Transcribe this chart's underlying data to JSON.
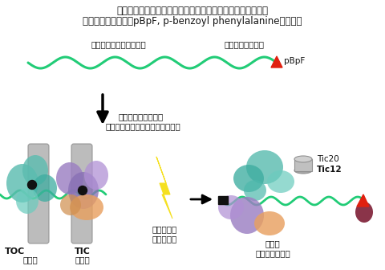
{
  "title_line1": "大腸菌内での葉緑体タンパク質前駆体トランジット配列への",
  "title_line2": "光架橋性アミノ酸（pBpF, p-benzoyl phenylalanine）の導入",
  "label_precursor": "葉緑体タンパク質前駆体",
  "label_transit": "トランジット配列",
  "label_pbpf": "pBpF",
  "label_step1": "単離葉緑体を用いた",
  "label_step2": "緑体タンパク質輸送中間体の形成",
  "label_toc": "TOC",
  "label_tic": "TIC",
  "label_outer": "外包膜",
  "label_inner": "内包膜",
  "label_uv": "紫外線照射",
  "label_uv2": "による架橋",
  "label_result1": "変性後",
  "label_result2": "架橋産物の同定",
  "label_tic20": "Tic20",
  "label_tic12": "Tic12",
  "bg_color": "#ffffff",
  "green_color": "#22cc77",
  "teal_color": "#5bbcb0",
  "purple_color": "#9b7fc2",
  "orange_color": "#e8a060",
  "gray_color": "#a8a8a8",
  "yellow_color": "#f5e020",
  "red_color": "#e02010",
  "black_color": "#111111"
}
